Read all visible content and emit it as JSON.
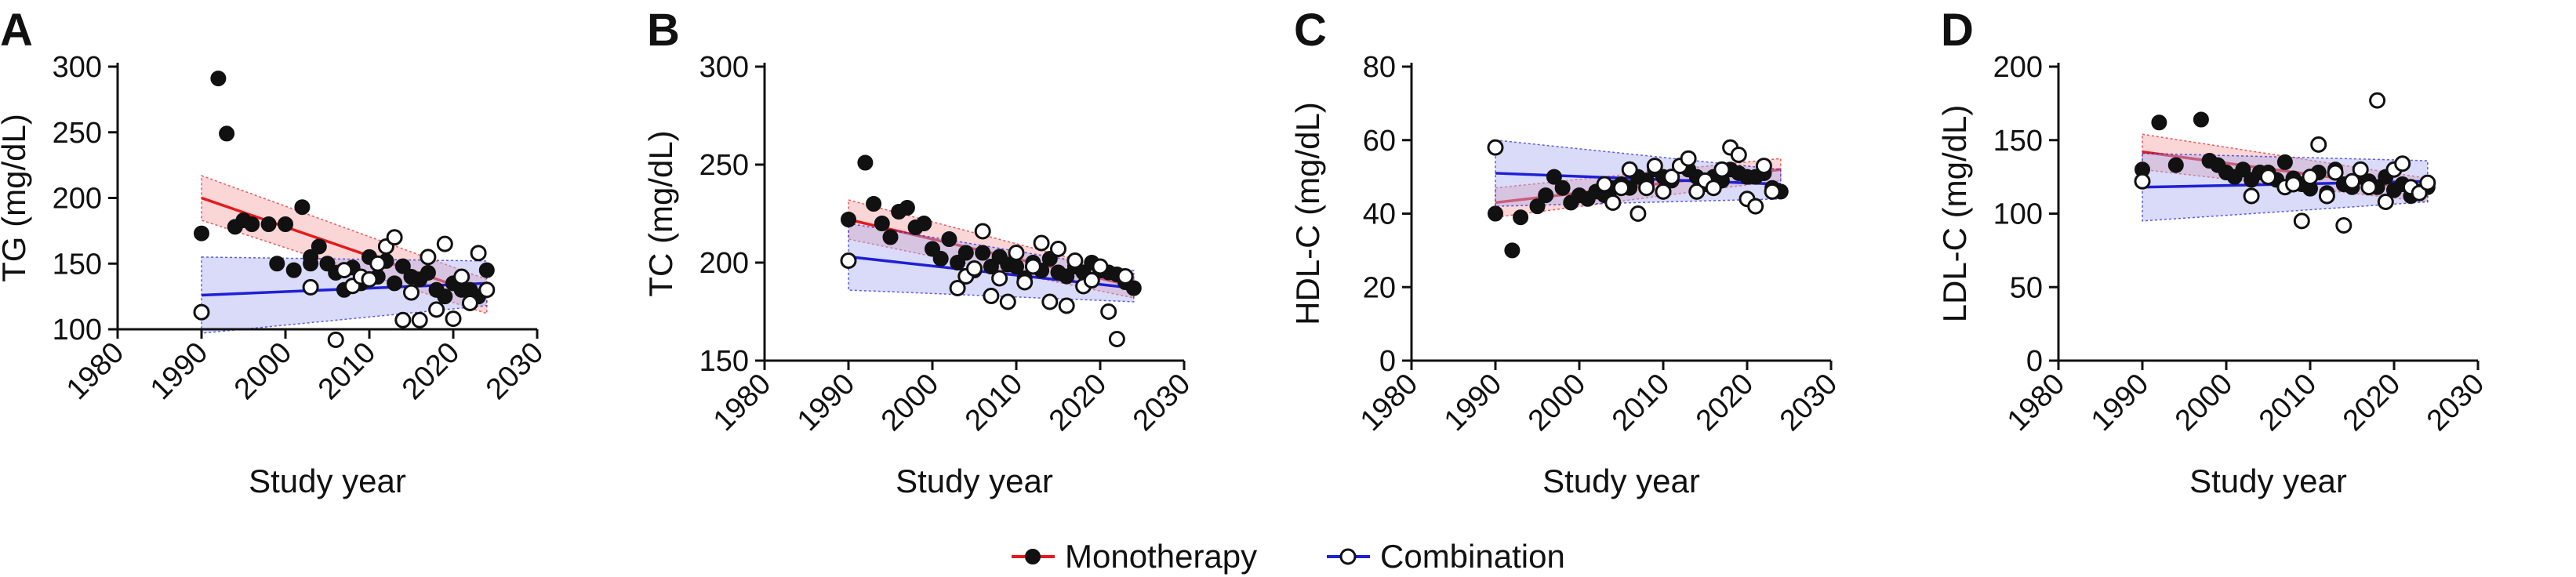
{
  "legend": {
    "monotherapy_label": "Monotherapy",
    "combination_label": "Combination"
  },
  "colors": {
    "monotherapy": "#e41a1c",
    "combination": "#1f1fd6",
    "monotherapy_band": "#f4a3a3",
    "combination_band": "#aab0f0"
  },
  "chart_data": [
    {
      "type": "scatter",
      "panel": "A",
      "xlabel": "Study year",
      "ylabel": "TG (mg/dL)",
      "xlim": [
        1980,
        2030
      ],
      "ylim": [
        100,
        300
      ],
      "xticks": [
        1980,
        1990,
        2000,
        2010,
        2020,
        2030
      ],
      "yticks": [
        100,
        150,
        200,
        250,
        300
      ],
      "series": [
        {
          "name": "Monotherapy",
          "marker": "filled",
          "x": [
            1990,
            1992,
            1993,
            1994,
            1995,
            1996,
            1998,
            1999,
            2000,
            2001,
            2002,
            2003,
            2003,
            2004,
            2005,
            2006,
            2007,
            2008,
            2009,
            2010,
            2011,
            2012,
            2013,
            2014,
            2015,
            2016,
            2017,
            2018,
            2019,
            2020,
            2021,
            2022,
            2023,
            2024
          ],
          "y": [
            173,
            291,
            249,
            178,
            183,
            180,
            180,
            150,
            180,
            145,
            193,
            155,
            150,
            163,
            150,
            143,
            130,
            147,
            135,
            155,
            140,
            152,
            135,
            148,
            140,
            138,
            143,
            130,
            125,
            135,
            130,
            130,
            125,
            145
          ]
        },
        {
          "name": "Combination",
          "marker": "open",
          "x": [
            1990,
            2003,
            2006,
            2007,
            2008,
            2009,
            2010,
            2011,
            2012,
            2013,
            2014,
            2015,
            2016,
            2017,
            2018,
            2019,
            2020,
            2021,
            2022,
            2023,
            2024
          ],
          "y": [
            113,
            132,
            92,
            145,
            133,
            140,
            138,
            150,
            163,
            170,
            107,
            128,
            107,
            155,
            115,
            165,
            108,
            140,
            120,
            158,
            130
          ]
        }
      ],
      "trend": [
        {
          "series": "Monotherapy",
          "x": [
            1990,
            2024
          ],
          "y": [
            200,
            125
          ],
          "ci_start": [
            183,
            217
          ],
          "ci_end": [
            112,
            138
          ]
        },
        {
          "series": "Combination",
          "x": [
            1990,
            2024
          ],
          "y": [
            126,
            135
          ],
          "ci_start": [
            97,
            155
          ],
          "ci_end": [
            118,
            152
          ]
        }
      ]
    },
    {
      "type": "scatter",
      "panel": "B",
      "xlabel": "Study year",
      "ylabel": "TC (mg/dL)",
      "xlim": [
        1980,
        2030
      ],
      "ylim": [
        150,
        300
      ],
      "xticks": [
        1980,
        1990,
        2000,
        2010,
        2020,
        2030
      ],
      "yticks": [
        150,
        200,
        250,
        300
      ],
      "series": [
        {
          "name": "Monotherapy",
          "marker": "filled",
          "x": [
            1990,
            1992,
            1993,
            1994,
            1995,
            1996,
            1997,
            1998,
            1999,
            2000,
            2001,
            2002,
            2003,
            2004,
            2005,
            2006,
            2007,
            2008,
            2009,
            2010,
            2011,
            2012,
            2013,
            2014,
            2015,
            2016,
            2017,
            2018,
            2019,
            2020,
            2021,
            2022,
            2023,
            2024
          ],
          "y": [
            222,
            251,
            230,
            220,
            213,
            226,
            228,
            218,
            220,
            207,
            202,
            212,
            200,
            205,
            196,
            205,
            198,
            203,
            199,
            198,
            192,
            200,
            196,
            202,
            195,
            193,
            198,
            195,
            200,
            196,
            195,
            194,
            190,
            187
          ]
        },
        {
          "name": "Combination",
          "marker": "open",
          "x": [
            1990,
            2003,
            2004,
            2005,
            2006,
            2007,
            2008,
            2009,
            2010,
            2011,
            2012,
            2013,
            2014,
            2015,
            2016,
            2017,
            2018,
            2019,
            2020,
            2021,
            2022,
            2023
          ],
          "y": [
            201,
            187,
            193,
            197,
            216,
            183,
            192,
            180,
            205,
            190,
            198,
            210,
            180,
            207,
            178,
            201,
            188,
            191,
            198,
            175,
            161,
            193
          ]
        }
      ],
      "trend": [
        {
          "series": "Monotherapy",
          "x": [
            1990,
            2024
          ],
          "y": [
            222,
            188
          ],
          "ci_start": [
            212,
            232
          ],
          "ci_end": [
            182,
            194
          ]
        },
        {
          "series": "Combination",
          "x": [
            1990,
            2024
          ],
          "y": [
            203,
            187
          ],
          "ci_start": [
            186,
            220
          ],
          "ci_end": [
            180,
            196
          ]
        }
      ]
    },
    {
      "type": "scatter",
      "panel": "C",
      "xlabel": "Study year",
      "ylabel": "HDL-C (mg/dL)",
      "xlim": [
        1980,
        2030
      ],
      "ylim": [
        0,
        80
      ],
      "xticks": [
        1980,
        1990,
        2000,
        2010,
        2020,
        2030
      ],
      "yticks": [
        0,
        20,
        40,
        60,
        80
      ],
      "series": [
        {
          "name": "Monotherapy",
          "marker": "filled",
          "x": [
            1990,
            1992,
            1993,
            1995,
            1996,
            1997,
            1998,
            1999,
            2000,
            2001,
            2002,
            2003,
            2004,
            2005,
            2006,
            2007,
            2008,
            2009,
            2010,
            2011,
            2012,
            2013,
            2014,
            2015,
            2016,
            2017,
            2018,
            2019,
            2020,
            2021,
            2022,
            2023,
            2024
          ],
          "y": [
            40,
            30,
            39,
            42,
            45,
            50,
            47,
            43,
            45,
            44,
            46,
            45,
            47,
            48,
            47,
            50,
            49,
            52,
            50,
            49,
            53,
            52,
            50,
            48,
            50,
            49,
            52,
            51,
            50,
            50,
            51,
            47,
            46
          ]
        },
        {
          "name": "Combination",
          "marker": "open",
          "x": [
            1990,
            2003,
            2004,
            2005,
            2006,
            2007,
            2008,
            2009,
            2010,
            2011,
            2012,
            2013,
            2014,
            2015,
            2016,
            2017,
            2018,
            2019,
            2020,
            2021,
            2022,
            2023
          ],
          "y": [
            58,
            48,
            43,
            47,
            52,
            40,
            47,
            53,
            46,
            50,
            53,
            55,
            46,
            49,
            47,
            52,
            58,
            56,
            44,
            42,
            53,
            46
          ]
        }
      ],
      "trend": [
        {
          "series": "Monotherapy",
          "x": [
            1990,
            2024
          ],
          "y": [
            43,
            52
          ],
          "ci_start": [
            39,
            47
          ],
          "ci_end": [
            49,
            55
          ]
        },
        {
          "series": "Combination",
          "x": [
            1990,
            2024
          ],
          "y": [
            51,
            48
          ],
          "ci_start": [
            42,
            60
          ],
          "ci_end": [
            44,
            52
          ]
        }
      ]
    },
    {
      "type": "scatter",
      "panel": "D",
      "xlabel": "Study year",
      "ylabel": "LDL-C (mg/dL)",
      "xlim": [
        1980,
        2030
      ],
      "ylim": [
        0,
        200
      ],
      "xticks": [
        1980,
        1990,
        2000,
        2010,
        2020,
        2030
      ],
      "yticks": [
        0,
        50,
        100,
        150,
        200
      ],
      "series": [
        {
          "name": "Monotherapy",
          "marker": "filled",
          "x": [
            1990,
            1992,
            1994,
            1997,
            1998,
            1999,
            2000,
            2001,
            2002,
            2003,
            2004,
            2005,
            2006,
            2007,
            2008,
            2009,
            2010,
            2011,
            2012,
            2013,
            2014,
            2015,
            2016,
            2017,
            2018,
            2019,
            2020,
            2021,
            2022,
            2023,
            2024
          ],
          "y": [
            130,
            162,
            133,
            164,
            136,
            133,
            128,
            125,
            130,
            123,
            128,
            128,
            123,
            135,
            124,
            120,
            117,
            128,
            114,
            130,
            120,
            118,
            125,
            122,
            118,
            125,
            116,
            120,
            112,
            115,
            118
          ]
        },
        {
          "name": "Combination",
          "marker": "open",
          "x": [
            1990,
            2003,
            2005,
            2007,
            2008,
            2009,
            2010,
            2011,
            2012,
            2013,
            2014,
            2015,
            2016,
            2017,
            2018,
            2019,
            2020,
            2021,
            2022,
            2023,
            2024
          ],
          "y": [
            122,
            112,
            125,
            118,
            120,
            95,
            125,
            147,
            112,
            128,
            92,
            122,
            130,
            118,
            177,
            108,
            130,
            134,
            118,
            114,
            121
          ]
        }
      ],
      "trend": [
        {
          "series": "Monotherapy",
          "x": [
            1990,
            2024
          ],
          "y": [
            142,
            116
          ],
          "ci_start": [
            130,
            154
          ],
          "ci_end": [
            108,
            124
          ]
        },
        {
          "series": "Combination",
          "x": [
            1990,
            2024
          ],
          "y": [
            118,
            122
          ],
          "ci_start": [
            95,
            141
          ],
          "ci_end": [
            108,
            136
          ]
        }
      ]
    }
  ]
}
